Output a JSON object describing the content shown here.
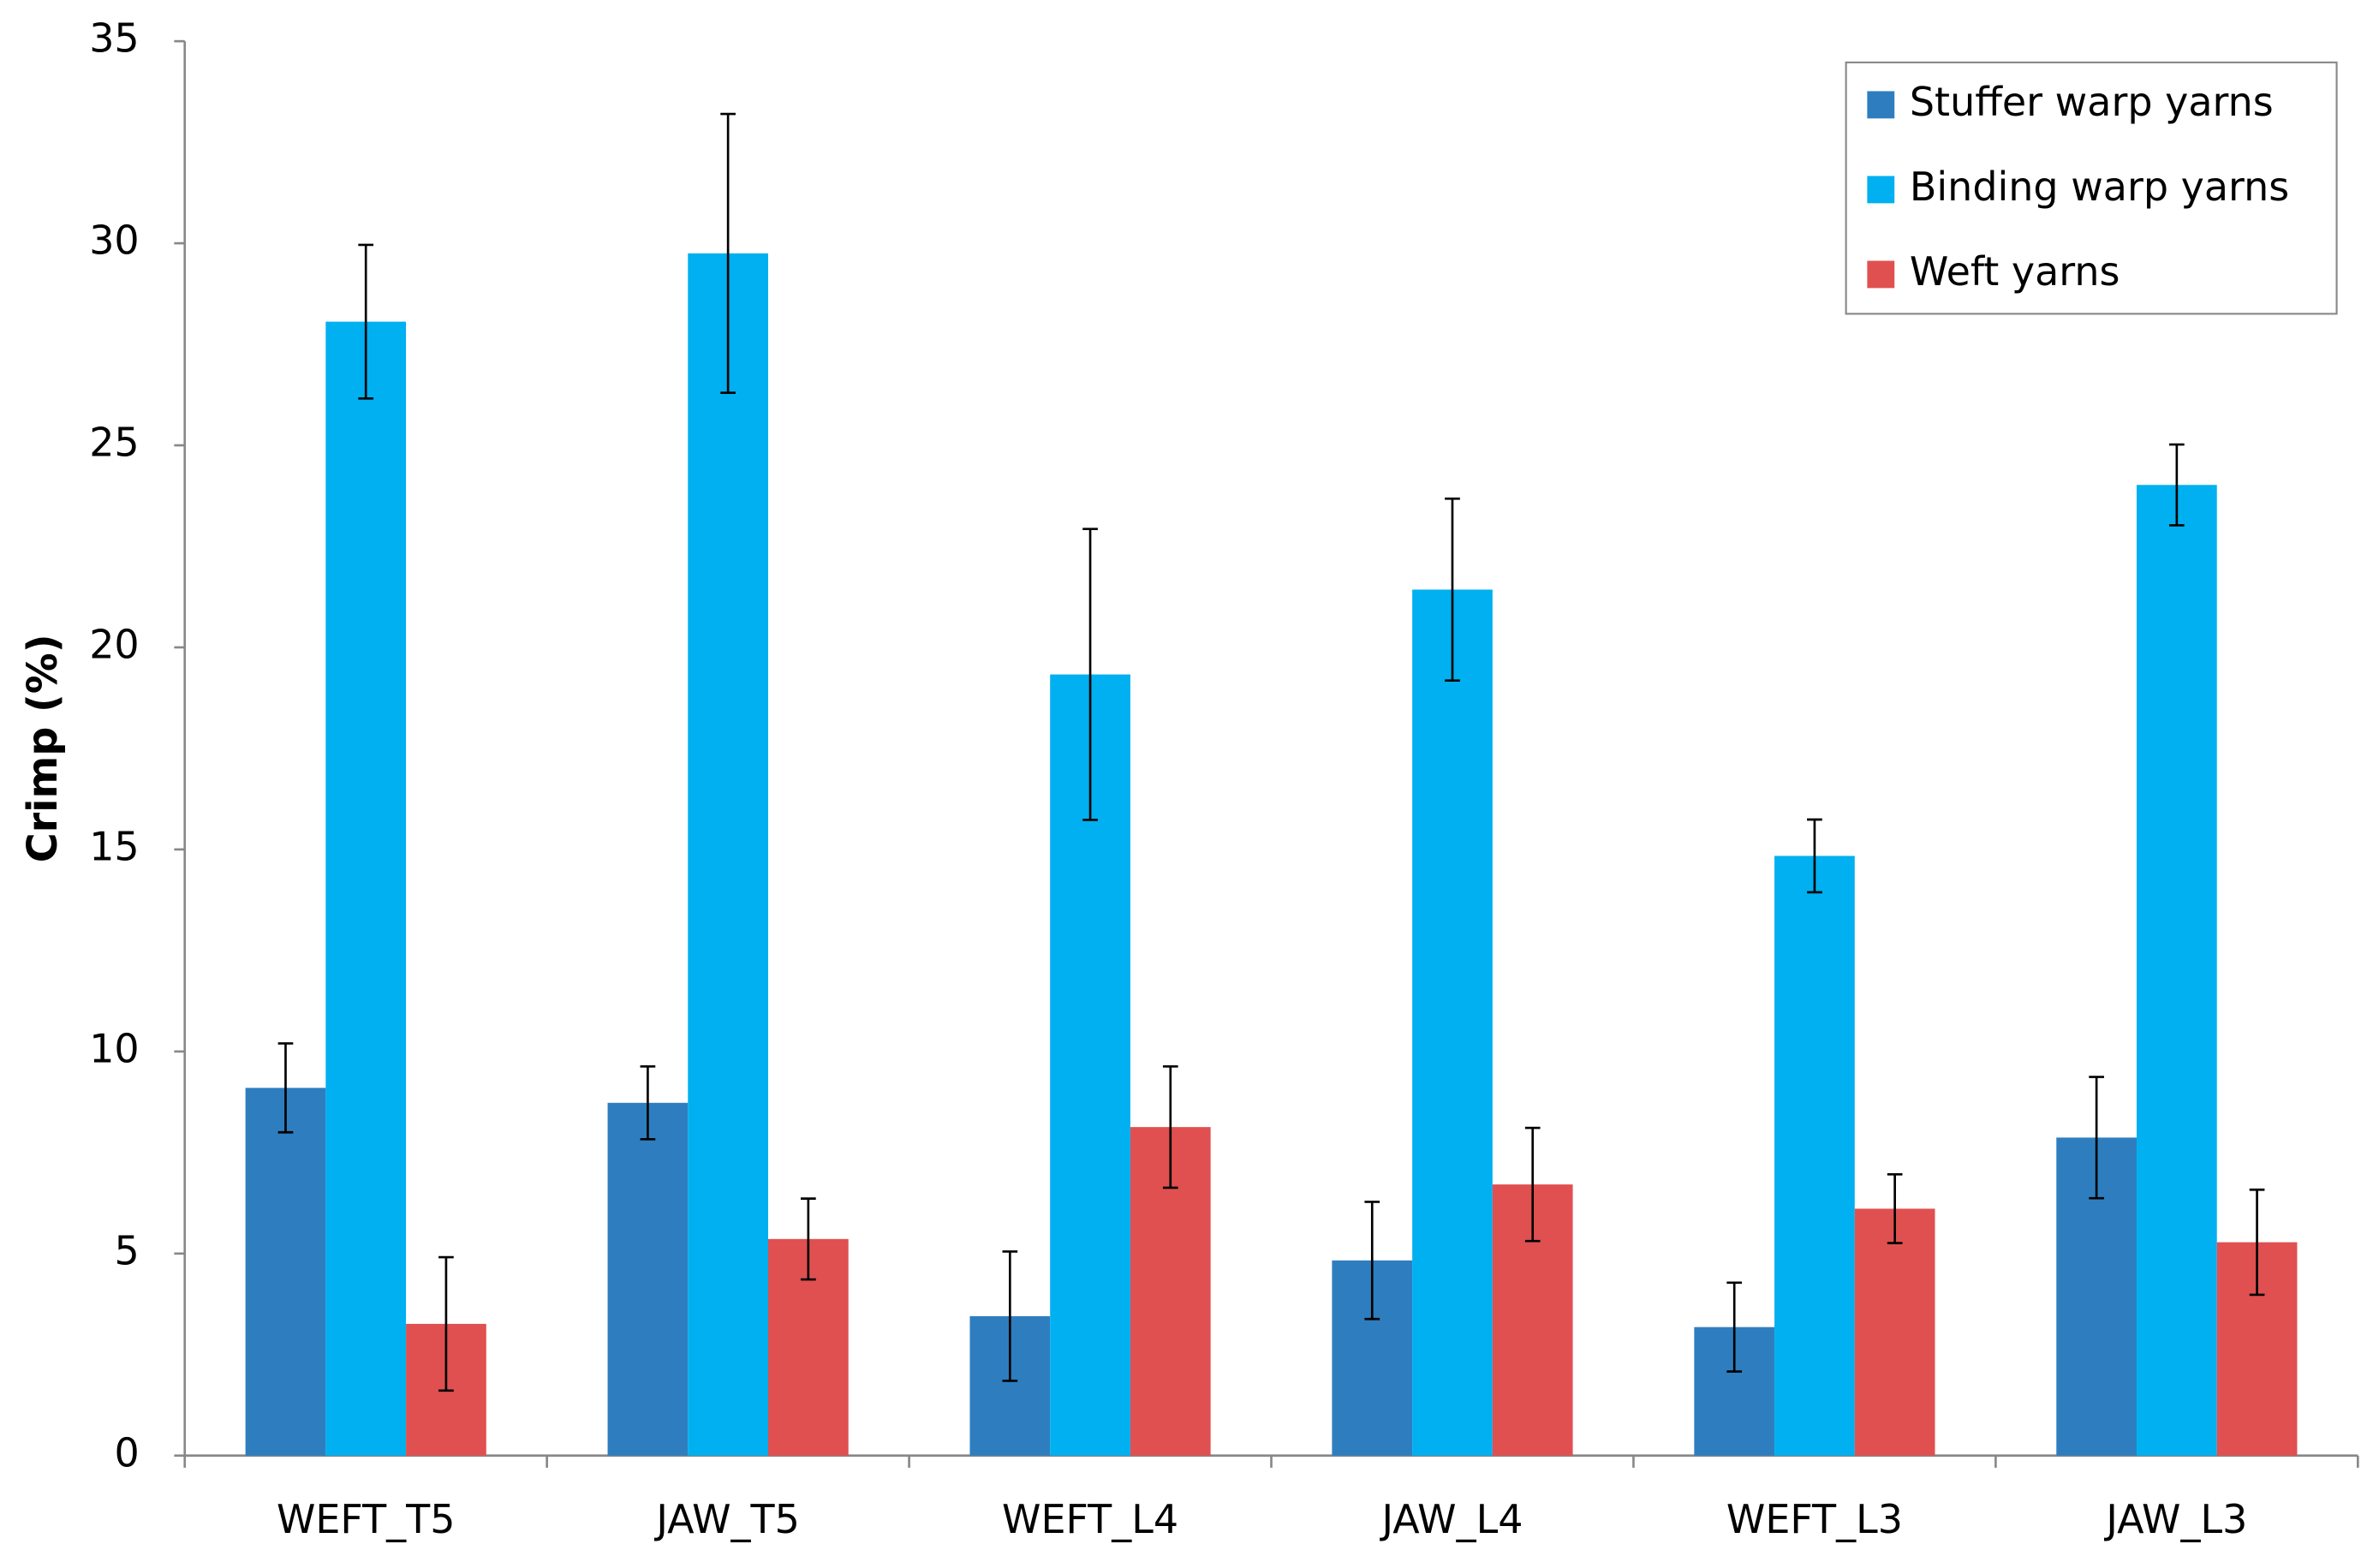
{
  "chart_data": {
    "type": "bar",
    "y_label": "Crimp (%)",
    "categories": [
      "WEFT_T5",
      "JAW_T5",
      "WEFT_L4",
      "JAW_L4",
      "WEFT_L3",
      "JAW_L3"
    ],
    "series": [
      {
        "name": "Stuffer warp yarns",
        "color": "#2e7ebf",
        "values": [
          9.1,
          8.73,
          3.45,
          4.83,
          3.18,
          7.87
        ],
        "errors": [
          1.1,
          0.9,
          1.6,
          1.45,
          1.1,
          1.5
        ]
      },
      {
        "name": "Binding warp yarns",
        "color": "#00b0f0",
        "values": [
          28.06,
          29.75,
          19.33,
          21.43,
          14.84,
          24.02
        ],
        "errors": [
          1.9,
          3.45,
          3.6,
          2.25,
          0.9,
          1.0
        ]
      },
      {
        "name": "Weft yarns",
        "color": "#e05050",
        "values": [
          3.26,
          5.36,
          8.13,
          6.71,
          6.11,
          5.28
        ],
        "errors": [
          1.65,
          1.0,
          1.5,
          1.4,
          0.85,
          1.3
        ]
      }
    ],
    "ylim": [
      0,
      35
    ],
    "yticks": [
      0,
      5,
      10,
      15,
      20,
      25,
      30,
      35
    ],
    "grid": false,
    "legend": "top-right"
  }
}
